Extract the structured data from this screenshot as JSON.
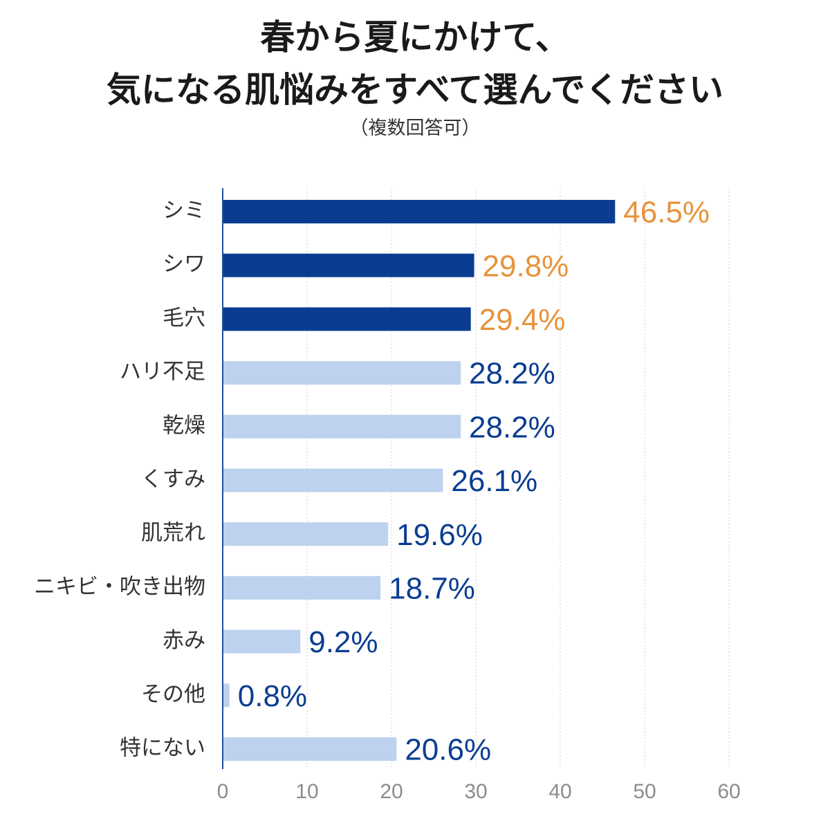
{
  "title": {
    "line1": "春から夏にかけて、",
    "line2": "気になる肌悩みをすべて選んでください",
    "subtitle": "（複数回答可）"
  },
  "colors": {
    "highlight_bar": "#0a3d91",
    "regular_bar": "#bcd2ee",
    "highlight_label": "#e8923a",
    "regular_label": "#0a3d91",
    "axis_line": "#1f4e9c",
    "grid": "#cfcfcf",
    "tick": "#8c8c8c"
  },
  "chart_data": {
    "type": "bar",
    "orientation": "horizontal",
    "categories": [
      "シミ",
      "シワ",
      "毛穴",
      "ハリ不足",
      "乾燥",
      "くすみ",
      "肌荒れ",
      "ニキビ・吹き出物",
      "赤み",
      "その他",
      "特にない"
    ],
    "values": [
      46.5,
      29.8,
      29.4,
      28.2,
      28.2,
      26.1,
      19.6,
      18.7,
      9.2,
      0.8,
      20.6
    ],
    "value_labels": [
      "46.5%",
      "29.8%",
      "29.4%",
      "28.2%",
      "28.2%",
      "26.1%",
      "19.6%",
      "18.7%",
      "9.2%",
      "0.8%",
      "20.6%"
    ],
    "highlighted": [
      true,
      true,
      true,
      false,
      false,
      false,
      false,
      false,
      false,
      false,
      false
    ],
    "xlim": [
      0,
      60
    ],
    "xticks": [
      0,
      10,
      20,
      30,
      40,
      50,
      60
    ],
    "grid": true
  }
}
